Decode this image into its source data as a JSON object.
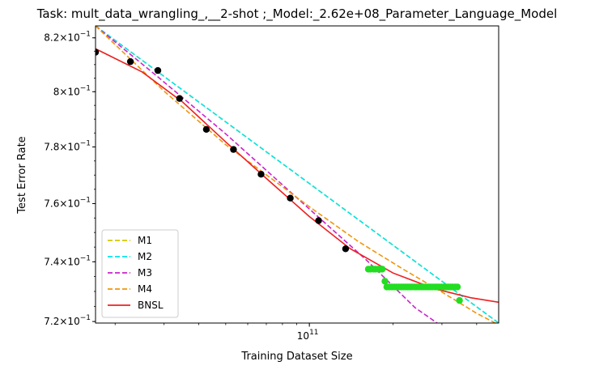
{
  "chart_data": {
    "type": "scatter",
    "title": "Task: mult_data_wrangling_,__2-shot ;_Model:_2.62e+08_Parameter_Language_Model",
    "xlabel": "Training Dataset Size",
    "ylabel": "Test Error Rate",
    "x_scale": "log",
    "y_scale": "log",
    "xlim": [
      17000000000.0,
      480000000000.0
    ],
    "ylim": [
      0.7195,
      0.8245
    ],
    "x_ticks": [
      {
        "value": 100000000000.0,
        "base": "10",
        "exp": "11"
      }
    ],
    "y_ticks": [
      {
        "value": 0.72,
        "mant": "7.2",
        "exp": "−1"
      },
      {
        "value": 0.74,
        "mant": "7.4",
        "exp": "−1"
      },
      {
        "value": 0.76,
        "mant": "7.6",
        "exp": "−1"
      },
      {
        "value": 0.78,
        "mant": "7.8",
        "exp": "−1"
      },
      {
        "value": 0.8,
        "mant": "8",
        "exp": "−1"
      },
      {
        "value": 0.82,
        "mant": "8.2",
        "exp": "−1"
      }
    ],
    "points_train": {
      "color": "#000000",
      "x": [
        17000000000.0,
        22700000000.0,
        28500000000.0,
        34100000000.0,
        42600000000.0,
        53300000000.0,
        67000000000.0,
        85400000000.0,
        108000000000.0,
        135000000000.0
      ],
      "y": [
        0.8146,
        0.8111,
        0.8078,
        0.7975,
        0.7863,
        0.7791,
        0.7703,
        0.7619,
        0.7541,
        0.7444
      ]
    },
    "points_test": {
      "color": "#22dd22",
      "x": [
        163000000000.0,
        166000000000.0,
        170000000000.0,
        173000000000.0,
        177000000000.0,
        180000000000.0,
        183000000000.0,
        187000000000.0,
        190000000000.0,
        194000000000.0,
        198000000000.0,
        202000000000.0,
        206000000000.0,
        210000000000.0,
        214000000000.0,
        218000000000.0,
        222000000000.0,
        226000000000.0,
        230000000000.0,
        234000000000.0,
        239000000000.0,
        243000000000.0,
        248000000000.0,
        253000000000.0,
        257000000000.0,
        262000000000.0,
        267000000000.0,
        272000000000.0,
        277000000000.0,
        283000000000.0,
        288000000000.0,
        293000000000.0,
        299000000000.0,
        305000000000.0,
        310000000000.0,
        316000000000.0,
        322000000000.0,
        328000000000.0,
        335000000000.0,
        341000000000.0,
        347000000000.0
      ],
      "y": [
        0.7375,
        0.7375,
        0.7375,
        0.7375,
        0.7375,
        0.7375,
        0.7375,
        0.7334,
        0.7315,
        0.7315,
        0.7315,
        0.7315,
        0.7315,
        0.7315,
        0.7315,
        0.7315,
        0.7315,
        0.7315,
        0.7315,
        0.7315,
        0.7315,
        0.7315,
        0.7315,
        0.7315,
        0.7315,
        0.7315,
        0.7315,
        0.7315,
        0.7315,
        0.7315,
        0.7315,
        0.7315,
        0.7315,
        0.7315,
        0.7315,
        0.7315,
        0.7315,
        0.7315,
        0.7315,
        0.7315,
        0.727
      ]
    },
    "series": [
      {
        "name": "M1",
        "color": "#d4c800",
        "dash": "6,3",
        "x": [
          17000000000.0,
          480000000000.0
        ],
        "y": [
          0.8245,
          0.7195
        ]
      },
      {
        "name": "M2",
        "color": "#00e5ee",
        "dash": "6,3",
        "x": [
          17000000000.0,
          480000000000.0
        ],
        "y": [
          0.8245,
          0.7195
        ]
      },
      {
        "name": "M3",
        "color": "#cc22cc",
        "dash": "6,3",
        "x": [
          17000000000.0,
          28000000000.0,
          50000000000.0,
          100000000000.0,
          160000000000.0,
          240000000000.0,
          310000000000.0
        ],
        "y": [
          0.8245,
          0.8061,
          0.7847,
          0.7581,
          0.7407,
          0.7246,
          0.7175
        ]
      },
      {
        "name": "M4",
        "color": "#f0960a",
        "dash": "6,3",
        "x": [
          17000000000.0,
          30000000000.0,
          50000000000.0,
          100000000000.0,
          150000000000.0,
          220000000000.0,
          300000000000.0,
          400000000000.0,
          480000000000.0
        ],
        "y": [
          0.8245,
          0.8002,
          0.7808,
          0.7589,
          0.7469,
          0.7372,
          0.7298,
          0.7227,
          0.7189
        ]
      },
      {
        "name": "BNSL",
        "color": "#ee2020",
        "dash": "",
        "x": [
          17000000000.0,
          25000000000.0,
          35000000000.0,
          50000000000.0,
          70000000000.0,
          100000000000.0,
          140000000000.0,
          200000000000.0,
          280000000000.0,
          380000000000.0,
          480000000000.0
        ],
        "y": [
          0.8159,
          0.8073,
          0.7962,
          0.7818,
          0.7688,
          0.7555,
          0.7445,
          0.7362,
          0.731,
          0.7279,
          0.7264
        ]
      }
    ],
    "legend": {
      "placement": "lower-left",
      "entries": [
        "M1",
        "M2",
        "M3",
        "M4",
        "BNSL"
      ]
    },
    "grid": false
  }
}
